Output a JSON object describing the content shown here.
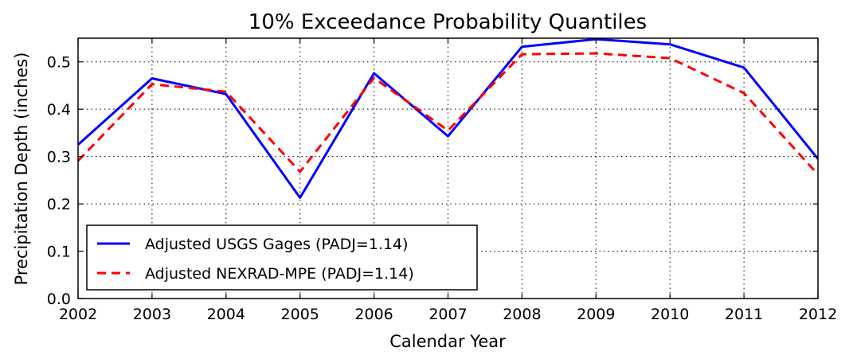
{
  "chart_data": {
    "type": "line",
    "title": "10% Exceedance Probability Quantiles",
    "xlabel": "Calendar Year",
    "ylabel": "Precipitation Depth (inches)",
    "xlim": [
      2002,
      2012
    ],
    "ylim": [
      0.0,
      0.55
    ],
    "x_ticks": [
      "2002",
      "2003",
      "2004",
      "2005",
      "2006",
      "2007",
      "2008",
      "2009",
      "2010",
      "2011",
      "2012"
    ],
    "y_ticks": [
      "0.0",
      "0.1",
      "0.2",
      "0.3",
      "0.4",
      "0.5"
    ],
    "grid": true,
    "legend_position": "lower-left",
    "x": [
      2002,
      2003,
      2004,
      2005,
      2006,
      2007,
      2008,
      2009,
      2010,
      2011,
      2012
    ],
    "series": [
      {
        "name": "Adjusted USGS Gages (PADJ=1.14)",
        "color": "#0000ff",
        "style": "solid",
        "values": [
          0.325,
          0.465,
          0.432,
          0.213,
          0.476,
          0.343,
          0.532,
          0.548,
          0.537,
          0.488,
          0.295
        ]
      },
      {
        "name": "Adjusted NEXRAD-MPE (PADJ=1.14)",
        "color": "#ff0000",
        "style": "dashed",
        "values": [
          0.291,
          0.453,
          0.437,
          0.268,
          0.466,
          0.355,
          0.516,
          0.518,
          0.508,
          0.434,
          0.262
        ]
      }
    ]
  }
}
